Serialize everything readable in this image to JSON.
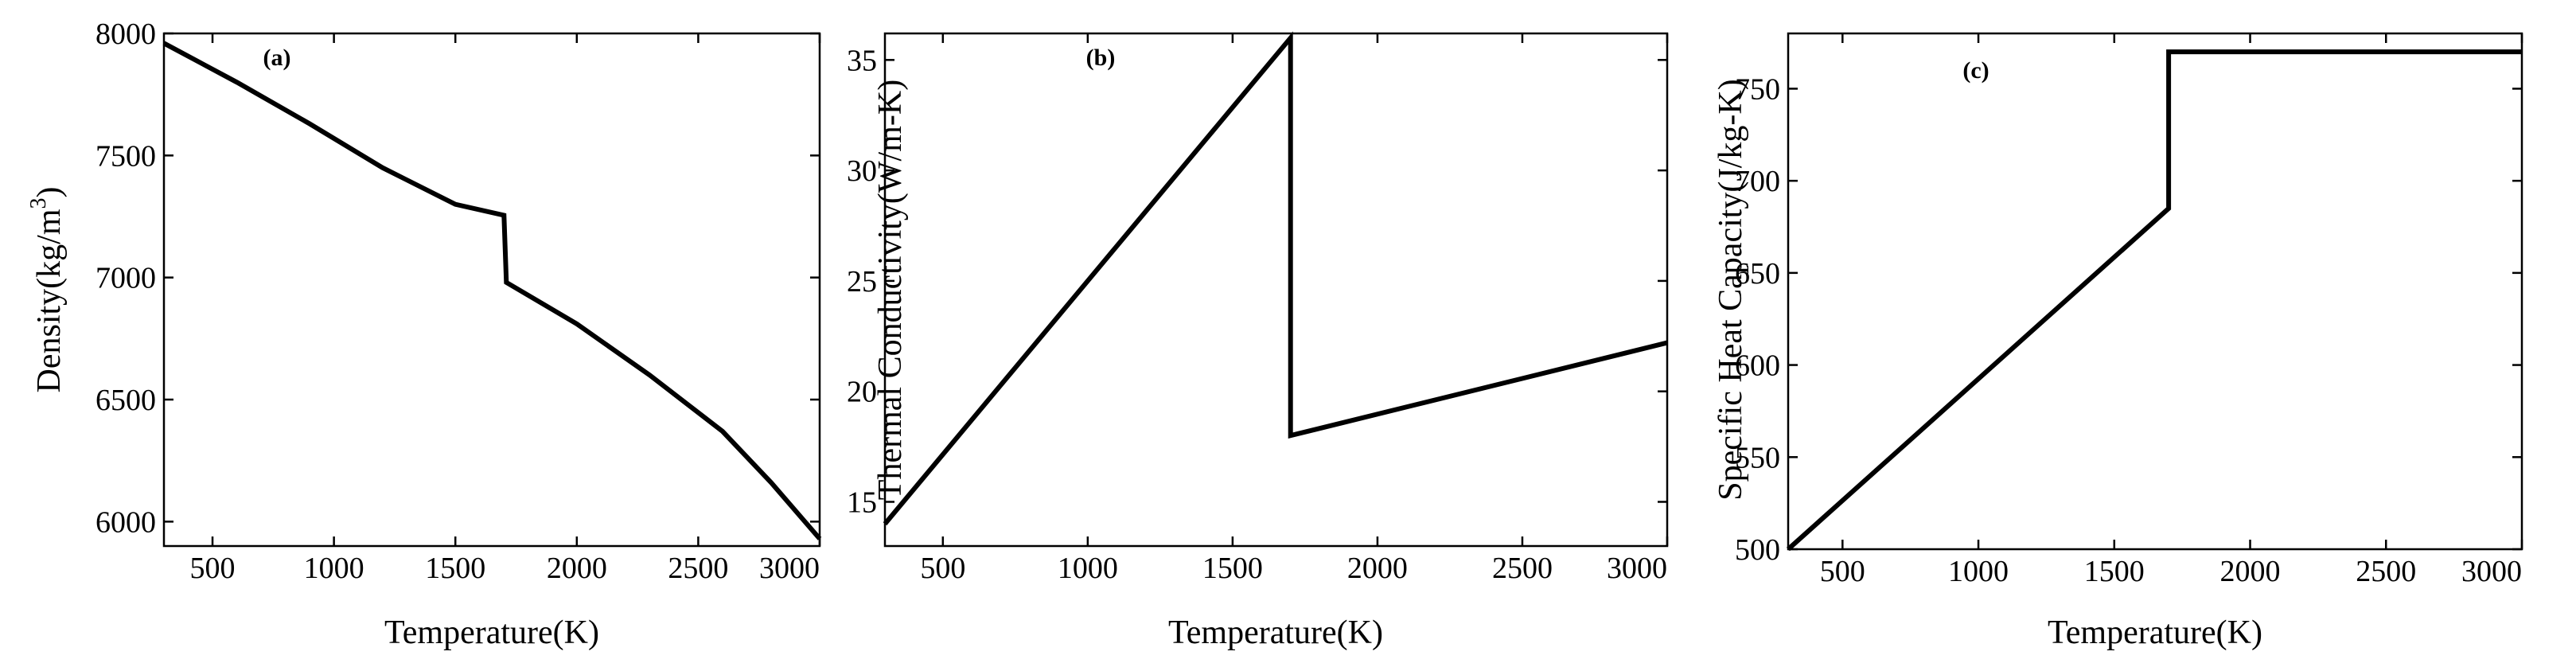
{
  "chart_data": [
    {
      "type": "line",
      "panel_label": "(a)",
      "xlabel": "Temperature(K)",
      "ylabel_main": "Density(kg/m",
      "ylabel_sup": "3",
      "ylabel_close": ")",
      "xlim": [
        300,
        3000
      ],
      "ylim": [
        5900,
        8000
      ],
      "xticks": [
        500,
        1000,
        1500,
        2000,
        2500,
        3000
      ],
      "yticks": [
        6000,
        6500,
        7000,
        7500,
        8000
      ],
      "series": [
        {
          "name": "Density",
          "x": [
            300,
            600,
            900,
            1200,
            1500,
            1700,
            1700,
            1710,
            2000,
            2300,
            2600,
            2800,
            3000
          ],
          "y": [
            7960,
            7800,
            7630,
            7450,
            7300,
            7255,
            7255,
            6980,
            6810,
            6600,
            6370,
            6160,
            5930
          ]
        }
      ]
    },
    {
      "type": "line",
      "panel_label": "(b)",
      "xlabel": "Temperature(K)",
      "ylabel_main": "Thermal Conductivity(W/m-K)",
      "xlim": [
        300,
        3000
      ],
      "ylim": [
        13,
        36.2
      ],
      "xticks": [
        500,
        1000,
        1500,
        2000,
        2500,
        3000
      ],
      "yticks": [
        15,
        20,
        25,
        30,
        35
      ],
      "series": [
        {
          "name": "Thermal Conductivity",
          "x": [
            300,
            1700,
            1700,
            3000
          ],
          "y": [
            14,
            36,
            18,
            22.2
          ]
        }
      ]
    },
    {
      "type": "line",
      "panel_label": "(c)",
      "xlabel": "Temperature(K)",
      "ylabel_main": "Specific Heat Capacity(J/kg-K)",
      "xlim": [
        300,
        3000
      ],
      "ylim": [
        500,
        780
      ],
      "xticks": [
        500,
        1000,
        1500,
        2000,
        2500,
        3000
      ],
      "yticks": [
        500,
        550,
        600,
        650,
        700,
        750
      ],
      "series": [
        {
          "name": "Specific Heat Capacity",
          "x": [
            300,
            1700,
            1700,
            3000
          ],
          "y": [
            500,
            685,
            770,
            770
          ]
        }
      ]
    }
  ]
}
